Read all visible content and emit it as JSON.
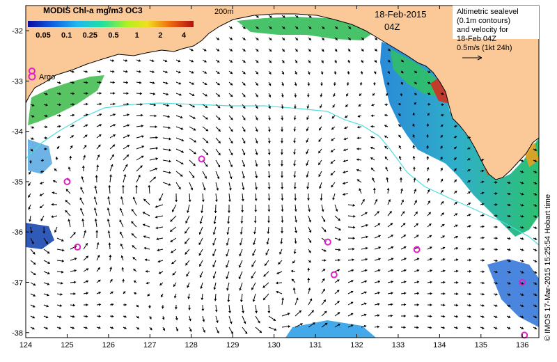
{
  "legend": {
    "title": "MODIS Chl-a mg/m3 OC3",
    "ticks": [
      "0.05",
      "0.1",
      "0.25",
      "0.5",
      "1",
      "2",
      "4"
    ]
  },
  "depth_label": "200m",
  "date": "18-Feb-2015",
  "time": "04Z",
  "altimetry_note": [
    "Altimetric sealevel",
    "(0.1m contours)",
    "and velocity for",
    "18-Feb 04Z",
    "0.5m/s (1kt 24h)"
  ],
  "argo_label": "Argo",
  "credit": "© IMOS 17-Mar-2015 15:25:54 Hobart time",
  "axes": {
    "lon_ticks": [
      "124",
      "125",
      "126",
      "127",
      "128",
      "129",
      "130",
      "131",
      "132",
      "133",
      "134",
      "135",
      "136"
    ],
    "lat_ticks": [
      "-32",
      "-33",
      "-34",
      "-35",
      "-36",
      "-37",
      "-38"
    ]
  },
  "argo_floats": [
    {
      "lon": 124.15,
      "lat": -32.8
    },
    {
      "lon": 128.25,
      "lat": -34.55
    },
    {
      "lon": 125.0,
      "lat": -35.0
    },
    {
      "lon": 125.25,
      "lat": -36.3
    },
    {
      "lon": 131.3,
      "lat": -36.2
    },
    {
      "lon": 131.45,
      "lat": -36.85
    },
    {
      "lon": 133.45,
      "lat": -36.35
    },
    {
      "lon": 136.0,
      "lat": -37.0
    },
    {
      "lon": 136.05,
      "lat": -38.05
    }
  ],
  "colors": {
    "land": "#fbc898",
    "ocean": "#ffffff",
    "contour": "#4fdcdc",
    "argo": "#e020c8"
  }
}
